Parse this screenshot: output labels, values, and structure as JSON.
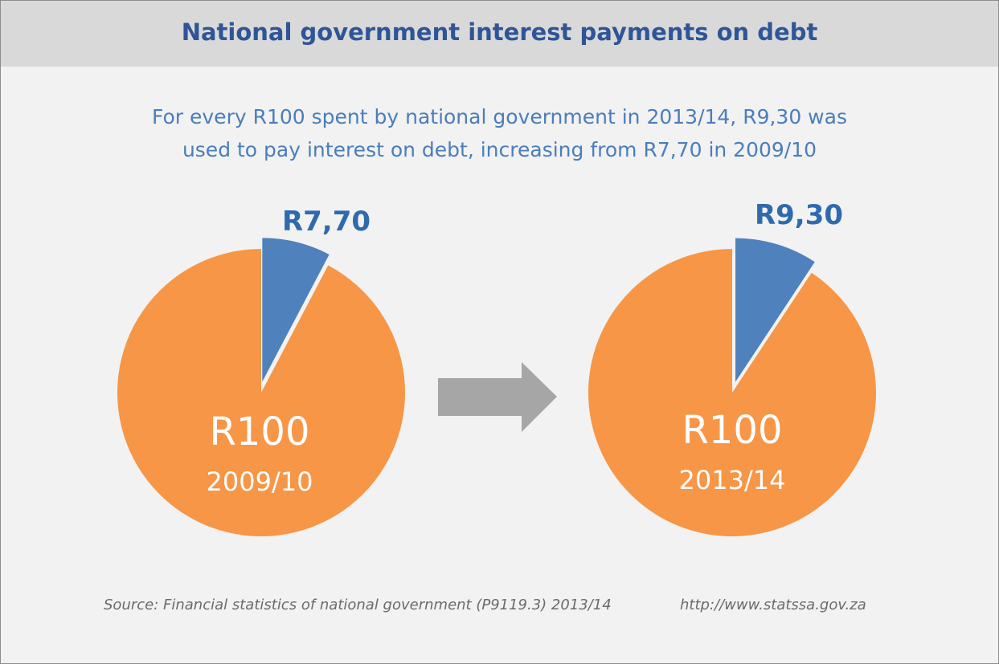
{
  "header": {
    "title": "National government interest payments on debt"
  },
  "subtitle": {
    "line1": "For every R100 spent by national government in 2013/14, R9,30 was",
    "line2": "used to pay interest on debt, increasing from R7,70 in 2009/10"
  },
  "chart_data": [
    {
      "type": "pie",
      "period": "2009/10",
      "total_label": "R100",
      "total": 100,
      "slices": [
        {
          "label": "R7,70",
          "value": 7.7,
          "color": "#4f81bd",
          "exploded": true
        },
        {
          "label": "",
          "value": 92.3,
          "color": "#f79646",
          "exploded": false
        }
      ]
    },
    {
      "type": "pie",
      "period": "2013/14",
      "total_label": "R100",
      "total": 100,
      "slices": [
        {
          "label": "R9,30",
          "value": 9.3,
          "color": "#4f81bd",
          "exploded": true
        },
        {
          "label": "",
          "value": 90.7,
          "color": "#f79646",
          "exploded": false
        }
      ]
    }
  ],
  "arrow": {
    "color": "#a6a6a6",
    "icon": "right-arrow-icon"
  },
  "footer": {
    "source": "Source: Financial statistics of national government (P9119.3) 2013/14",
    "url": "http://www.statssa.gov.za"
  },
  "colors": {
    "header_bg": "#d9d9d9",
    "title": "#2f5597",
    "subtitle": "#4a7ebb",
    "label_blue": "#2f6aad",
    "background": "#f2f2f2"
  }
}
